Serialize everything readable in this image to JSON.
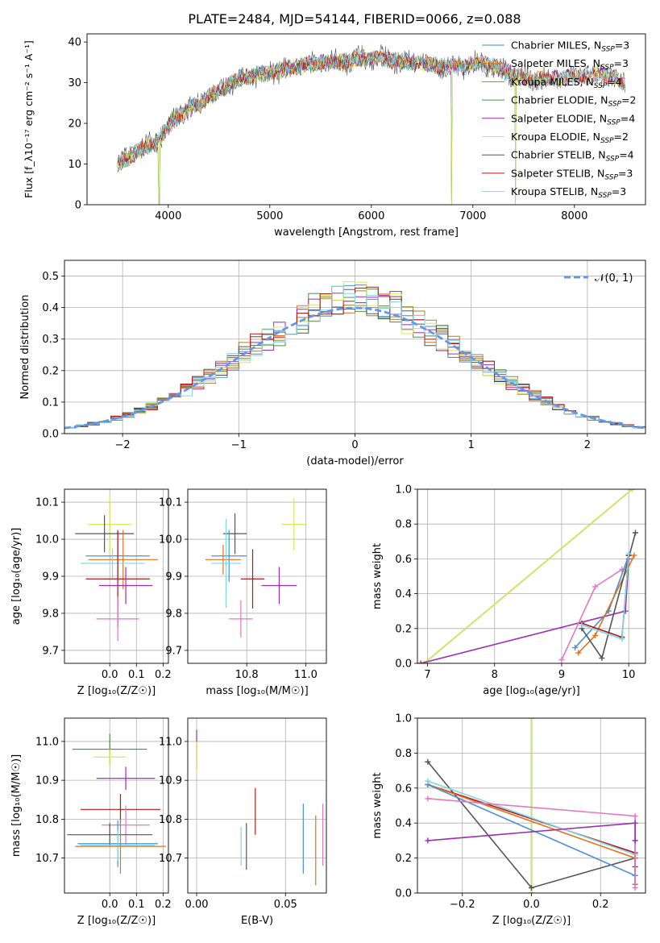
{
  "figure": {
    "title": "PLATE=2484, MJD=54144, FIBERID=0066, z=0.088"
  },
  "colors": {
    "chabrier_miles": "#4a8fd8",
    "salpeter_miles": "#e3701b",
    "kroupa_miles": "#a87f1e",
    "chabrier_elodie": "#4e8f4e",
    "salpeter_elodie": "#9a2fb0",
    "kroupa_elodie": "#d6e85a",
    "chabrier_stelib": "#555555",
    "salpeter_stelib": "#b01818",
    "kroupa_stelib": "#7fd6e8",
    "pink": "#e377c2",
    "normal_curve": "#6495ed"
  },
  "chart_data": [
    {
      "id": "spectrum",
      "type": "line",
      "title": "PLATE=2484, MJD=54144, FIBERID=0066, z=0.088",
      "xlabel": "wavelength [Angstrom, rest frame]",
      "ylabel": "Flux [f_λ10⁻¹⁷ erg cm⁻² s⁻¹ A⁻¹]",
      "xlim": [
        3200,
        8700
      ],
      "ylim": [
        0,
        42
      ],
      "xticks": [
        "4000",
        "5000",
        "6000",
        "7000",
        "8000"
      ],
      "yticks": [
        "0",
        "10",
        "20",
        "30",
        "40"
      ],
      "grid": false,
      "legend_position": "top-right",
      "continuum": {
        "x": [
          3500,
          3700,
          3900,
          4000,
          4100,
          4300,
          4500,
          4700,
          4900,
          5100,
          5300,
          5500,
          5700,
          5900,
          6100,
          6300,
          6500,
          6700,
          6900,
          7100,
          7300,
          7500,
          7700,
          7900,
          8100,
          8300,
          8500,
          8700
        ],
        "y": [
          10,
          13,
          16,
          19,
          22,
          25,
          28,
          31,
          32,
          33,
          34,
          35,
          35,
          36,
          36,
          35,
          35,
          34,
          34,
          35,
          33,
          31,
          31,
          31,
          32,
          32,
          30,
          29
        ]
      },
      "dips": [
        {
          "x": 3910,
          "y": 0
        },
        {
          "x": 6790,
          "y": 0
        },
        {
          "x": 7420,
          "y": 0
        }
      ],
      "series": [
        {
          "name": "Chabrier MILES",
          "nssp": "3",
          "color_key": "chabrier_miles"
        },
        {
          "name": "Salpeter MILES",
          "nssp": "3",
          "color_key": "salpeter_miles"
        },
        {
          "name": "Kroupa MILES",
          "nssp": "4",
          "color_key": "kroupa_miles"
        },
        {
          "name": "Chabrier ELODIE",
          "nssp": "2",
          "color_key": "chabrier_elodie"
        },
        {
          "name": "Salpeter ELODIE",
          "nssp": "4",
          "color_key": "salpeter_elodie"
        },
        {
          "name": "Kroupa ELODIE",
          "nssp": "2",
          "color_key": "kroupa_elodie"
        },
        {
          "name": "Chabrier STELIB",
          "nssp": "4",
          "color_key": "chabrier_stelib"
        },
        {
          "name": "Salpeter STELIB",
          "nssp": "3",
          "color_key": "salpeter_stelib"
        },
        {
          "name": "Kroupa STELIB",
          "nssp": "3",
          "color_key": "kroupa_stelib"
        }
      ]
    },
    {
      "id": "residuals",
      "type": "step",
      "xlabel": "(data-model)/error",
      "ylabel": "Normed distribution",
      "xlim": [
        -2.5,
        2.5
      ],
      "ylim": [
        0,
        0.55
      ],
      "xticks": [
        "−2",
        "−1",
        "0",
        "1",
        "2"
      ],
      "yticks": [
        "0.0",
        "0.1",
        "0.2",
        "0.3",
        "0.4",
        "0.5"
      ],
      "grid": true,
      "bin_width": 0.1,
      "legend": [
        {
          "label": "𝒩(0, 1)",
          "style": "dashed",
          "color_key": "normal_curve"
        }
      ],
      "series_color_keys": [
        "chabrier_miles",
        "salpeter_miles",
        "kroupa_miles",
        "chabrier_elodie",
        "salpeter_elodie",
        "kroupa_elodie",
        "chabrier_stelib",
        "salpeter_stelib",
        "kroupa_stelib"
      ]
    },
    {
      "id": "z_vs_age",
      "type": "errorbar",
      "xlabel": "Z [log₁₀(Z/Z☉)]",
      "ylabel": "age [log₁₀(age/yr)]",
      "xlim": [
        -0.17,
        0.22
      ],
      "ylim": [
        9.665,
        10.135
      ],
      "xticks": [
        "0.0",
        "0.1",
        "0.2"
      ],
      "yticks": [
        "9.7",
        "9.8",
        "9.9",
        "10.0",
        "10.1"
      ],
      "grid": true,
      "points": [
        {
          "x": 0.0,
          "y": 10.04,
          "xerr": 0.08,
          "yerr": 0.075,
          "color_key": "kroupa_elodie"
        },
        {
          "x": -0.02,
          "y": 10.015,
          "xerr": 0.11,
          "yerr": 0.05,
          "color_key": "chabrier_stelib"
        },
        {
          "x": 0.03,
          "y": 9.955,
          "xerr": 0.12,
          "yerr": 0.07,
          "color_key": "chabrier_miles"
        },
        {
          "x": 0.05,
          "y": 9.945,
          "xerr": 0.13,
          "yerr": 0.08,
          "color_key": "salpeter_miles"
        },
        {
          "x": 0.01,
          "y": 9.935,
          "xerr": 0.12,
          "yerr": 0.04,
          "color_key": "kroupa_stelib"
        },
        {
          "x": 0.03,
          "y": 9.893,
          "xerr": 0.12,
          "yerr": 0.13,
          "color_key": "salpeter_stelib"
        },
        {
          "x": 0.06,
          "y": 9.875,
          "xerr": 0.1,
          "yerr": 0.05,
          "color_key": "salpeter_elodie"
        },
        {
          "x": 0.03,
          "y": 9.785,
          "xerr": 0.08,
          "yerr": 0.06,
          "color_key": "pink"
        }
      ]
    },
    {
      "id": "mass_vs_age",
      "type": "errorbar",
      "xlabel": "mass [log₁₀(M/M☉)]",
      "ylabel": "",
      "xlim": [
        10.6,
        11.07
      ],
      "ylim": [
        9.665,
        10.135
      ],
      "xticks": [
        "10.8",
        "11.0"
      ],
      "yticks": [
        "9.7",
        "9.8",
        "9.9",
        "10.0",
        "10.1"
      ],
      "grid": true,
      "points": [
        {
          "x": 10.96,
          "y": 10.04,
          "xerr": 0.04,
          "yerr": 0.07,
          "color_key": "kroupa_elodie"
        },
        {
          "x": 10.76,
          "y": 10.015,
          "xerr": 0.04,
          "yerr": 0.055,
          "color_key": "chabrier_stelib"
        },
        {
          "x": 10.74,
          "y": 9.955,
          "xerr": 0.06,
          "yerr": 0.07,
          "color_key": "chabrier_miles"
        },
        {
          "x": 10.72,
          "y": 9.945,
          "xerr": 0.06,
          "yerr": 0.04,
          "color_key": "salpeter_miles"
        },
        {
          "x": 10.73,
          "y": 9.935,
          "xerr": 0.05,
          "yerr": 0.12,
          "color_key": "kroupa_stelib"
        },
        {
          "x": 10.82,
          "y": 9.893,
          "xerr": 0.04,
          "yerr": 0.08,
          "color_key": "salpeter_stelib"
        },
        {
          "x": 10.91,
          "y": 9.875,
          "xerr": 0.06,
          "yerr": 0.05,
          "color_key": "salpeter_elodie"
        },
        {
          "x": 10.78,
          "y": 9.785,
          "xerr": 0.04,
          "yerr": 0.05,
          "color_key": "pink"
        }
      ]
    },
    {
      "id": "age_vs_weight",
      "type": "line",
      "xlabel": "age [log₁₀(age/yr)]",
      "ylabel": "mass weight",
      "xlim": [
        6.85,
        10.25
      ],
      "ylim": [
        0,
        1
      ],
      "xticks": [
        "7",
        "8",
        "9",
        "10"
      ],
      "yticks": [
        "0.0",
        "0.2",
        "0.4",
        "0.6",
        "0.8",
        "1.0"
      ],
      "grid": true,
      "series": [
        {
          "color_key": "chabrier_elodie",
          "x": [
            6.95,
            10.05
          ],
          "y": [
            0.0,
            1.0
          ]
        },
        {
          "color_key": "kroupa_elodie",
          "x": [
            6.95,
            10.05
          ],
          "y": [
            0.0,
            1.0
          ]
        },
        {
          "color_key": "salpeter_elodie",
          "x": [
            6.9,
            9.95,
            10.0
          ],
          "y": [
            0.0,
            0.3,
            0.6
          ]
        },
        {
          "color_key": "pink",
          "x": [
            9.0,
            9.5,
            9.9
          ],
          "y": [
            0.02,
            0.44,
            0.54
          ]
        },
        {
          "color_key": "chabrier_miles",
          "x": [
            9.2,
            9.7,
            10.0
          ],
          "y": [
            0.09,
            0.3,
            0.62
          ]
        },
        {
          "color_key": "salpeter_miles",
          "x": [
            9.25,
            9.5,
            10.08
          ],
          "y": [
            0.06,
            0.16,
            0.62
          ]
        },
        {
          "color_key": "chabrier_stelib",
          "x": [
            9.3,
            9.6,
            10.1
          ],
          "y": [
            0.2,
            0.03,
            0.75
          ]
        },
        {
          "color_key": "salpeter_stelib",
          "x": [
            9.3,
            9.9,
            10.0
          ],
          "y": [
            0.23,
            0.15,
            0.62
          ]
        },
        {
          "color_key": "kroupa_stelib",
          "x": [
            9.3,
            9.9,
            10.0
          ],
          "y": [
            0.22,
            0.14,
            0.63
          ]
        }
      ]
    },
    {
      "id": "z_vs_mass",
      "type": "errorbar",
      "xlabel": "Z [log₁₀(Z/Z☉)]",
      "ylabel": "mass [log₁₀(M/M☉)]",
      "xlim": [
        -0.17,
        0.22
      ],
      "ylim": [
        10.61,
        11.06
      ],
      "xticks": [
        "0.0",
        "0.1",
        "0.2"
      ],
      "yticks": [
        "10.7",
        "10.8",
        "10.9",
        "11.0"
      ],
      "grid": true,
      "points": [
        {
          "x": 0.0,
          "y": 10.98,
          "xerr": 0.14,
          "yerr": 0.04,
          "color_key": "chabrier_elodie"
        },
        {
          "x": 0.0,
          "y": 10.96,
          "xerr": 0.06,
          "yerr": 0.02,
          "color_key": "kroupa_elodie"
        },
        {
          "x": 0.06,
          "y": 10.905,
          "xerr": 0.11,
          "yerr": 0.03,
          "color_key": "salpeter_elodie"
        },
        {
          "x": 0.04,
          "y": 10.825,
          "xerr": 0.15,
          "yerr": 0.04,
          "color_key": "salpeter_stelib"
        },
        {
          "x": 0.06,
          "y": 10.785,
          "xerr": 0.09,
          "yerr": 0.05,
          "color_key": "pink"
        },
        {
          "x": 0.0,
          "y": 10.76,
          "xerr": 0.16,
          "yerr": 0.03,
          "color_key": "chabrier_stelib"
        },
        {
          "x": 0.03,
          "y": 10.737,
          "xerr": 0.15,
          "yerr": 0.06,
          "color_key": "chabrier_miles"
        },
        {
          "x": 0.03,
          "y": 10.733,
          "xerr": 0.14,
          "yerr": 0.04,
          "color_key": "kroupa_stelib"
        },
        {
          "x": 0.04,
          "y": 10.73,
          "xerr": 0.17,
          "yerr": 0.07,
          "color_key": "salpeter_miles"
        }
      ]
    },
    {
      "id": "ebv_vs_mass",
      "type": "errorbar",
      "xlabel": "E(B-V)",
      "ylabel": "",
      "xlim": [
        -0.005,
        0.073
      ],
      "ylim": [
        10.61,
        11.06
      ],
      "xticks": [
        "0.00",
        "0.05"
      ],
      "yticks": [
        "10.7",
        "10.8",
        "10.9",
        "11.0"
      ],
      "grid": true,
      "points": [
        {
          "x": 0.0,
          "y": 10.98,
          "xerr": 0,
          "yerr": 0.05,
          "color_key": "salpeter_elodie"
        },
        {
          "x": 0.0,
          "y": 10.96,
          "xerr": 0,
          "yerr": 0.04,
          "color_key": "kroupa_elodie"
        },
        {
          "x": 0.025,
          "y": 10.73,
          "xerr": 0,
          "yerr": 0.05,
          "color_key": "kroupa_stelib"
        },
        {
          "x": 0.028,
          "y": 10.73,
          "xerr": 0,
          "yerr": 0.06,
          "color_key": "chabrier_stelib"
        },
        {
          "x": 0.033,
          "y": 10.82,
          "xerr": 0,
          "yerr": 0.06,
          "color_key": "salpeter_stelib"
        },
        {
          "x": 0.06,
          "y": 10.75,
          "xerr": 0,
          "yerr": 0.09,
          "color_key": "chabrier_miles"
        },
        {
          "x": 0.067,
          "y": 10.72,
          "xerr": 0,
          "yerr": 0.09,
          "color_key": "salpeter_miles"
        },
        {
          "x": 0.071,
          "y": 10.76,
          "xerr": 0,
          "yerr": 0.08,
          "color_key": "pink"
        }
      ]
    },
    {
      "id": "z_vs_weight",
      "type": "line",
      "xlabel": "Z [log₁₀(Z/Z☉)]",
      "ylabel": "mass weight",
      "xlim": [
        -0.33,
        0.33
      ],
      "ylim": [
        0,
        1
      ],
      "xticks": [
        "−0.2",
        "0.0",
        "0.2"
      ],
      "yticks": [
        "0.0",
        "0.2",
        "0.4",
        "0.6",
        "0.8",
        "1.0"
      ],
      "grid": true,
      "series": [
        {
          "color_key": "chabrier_elodie",
          "x": [
            0.0,
            0.0
          ],
          "y": [
            0.0,
            1.0
          ]
        },
        {
          "color_key": "kroupa_elodie",
          "x": [
            0.0,
            0.0
          ],
          "y": [
            0.0,
            1.0
          ]
        },
        {
          "color_key": "chabrier_stelib",
          "x": [
            -0.3,
            0.0,
            0.3,
            0.3
          ],
          "y": [
            0.75,
            0.03,
            0.2,
            0.05
          ]
        },
        {
          "color_key": "salpeter_stelib",
          "x": [
            -0.3,
            0.3,
            0.3
          ],
          "y": [
            0.62,
            0.23,
            0.15
          ]
        },
        {
          "color_key": "salpeter_miles",
          "x": [
            -0.3,
            0.3,
            0.3
          ],
          "y": [
            0.62,
            0.2,
            0.05
          ]
        },
        {
          "color_key": "chabrier_miles",
          "x": [
            -0.3,
            0.3,
            0.3
          ],
          "y": [
            0.62,
            0.1,
            0.3
          ]
        },
        {
          "color_key": "kroupa_stelib",
          "x": [
            -0.3,
            0.3
          ],
          "y": [
            0.64,
            0.22
          ]
        },
        {
          "color_key": "pink",
          "x": [
            -0.3,
            0.3,
            0.3
          ],
          "y": [
            0.54,
            0.44,
            0.03
          ]
        },
        {
          "color_key": "salpeter_elodie",
          "x": [
            -0.3,
            0.3,
            0.3
          ],
          "y": [
            0.3,
            0.4,
            0.3
          ]
        }
      ]
    }
  ]
}
